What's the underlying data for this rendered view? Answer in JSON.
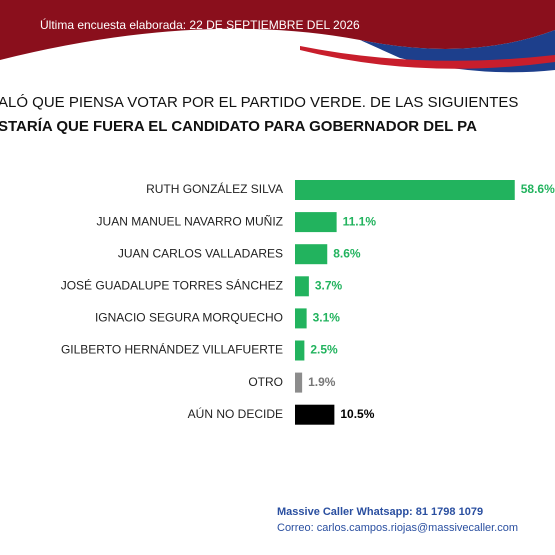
{
  "header": {
    "text": "Última encuesta elaborada: 22 DE SEPTIEMBRE DEL 2026"
  },
  "chart_data": {
    "type": "bar",
    "orientation": "horizontal",
    "title_lines": [
      "ALÓ QUE PIENSA VOTAR POR EL PARTIDO VERDE. DE LAS SIGUIENTES",
      "STARÍA QUE FUERA EL CANDIDATO PARA GOBERNADOR DEL PA"
    ],
    "categories": [
      "RUTH GONZÁLEZ SILVA",
      "JUAN MANUEL NAVARRO MUÑIZ",
      "JUAN CARLOS VALLADARES",
      "JOSÉ GUADALUPE TORRES SÁNCHEZ",
      "IGNACIO SEGURA MORQUECHO",
      "GILBERTO HERNÁNDEZ VILLAFUERTE",
      "OTRO",
      "AÚN NO DECIDE"
    ],
    "values": [
      58.6,
      11.1,
      8.6,
      3.7,
      3.1,
      2.5,
      1.9,
      10.5
    ],
    "value_labels": [
      "58.6%",
      "11.1%",
      "8.6%",
      "3.7%",
      "3.1%",
      "2.5%",
      "1.9%",
      "10.5%"
    ],
    "colors": [
      "#22b35e",
      "#22b35e",
      "#22b35e",
      "#22b35e",
      "#22b35e",
      "#22b35e",
      "#8c8c8c",
      "#000000"
    ]
  },
  "footer": {
    "lines": [
      "Massive Caller Whatsapp: 81 1798 1079",
      "Correo: carlos.campos.riojas@massivecaller.com"
    ]
  }
}
